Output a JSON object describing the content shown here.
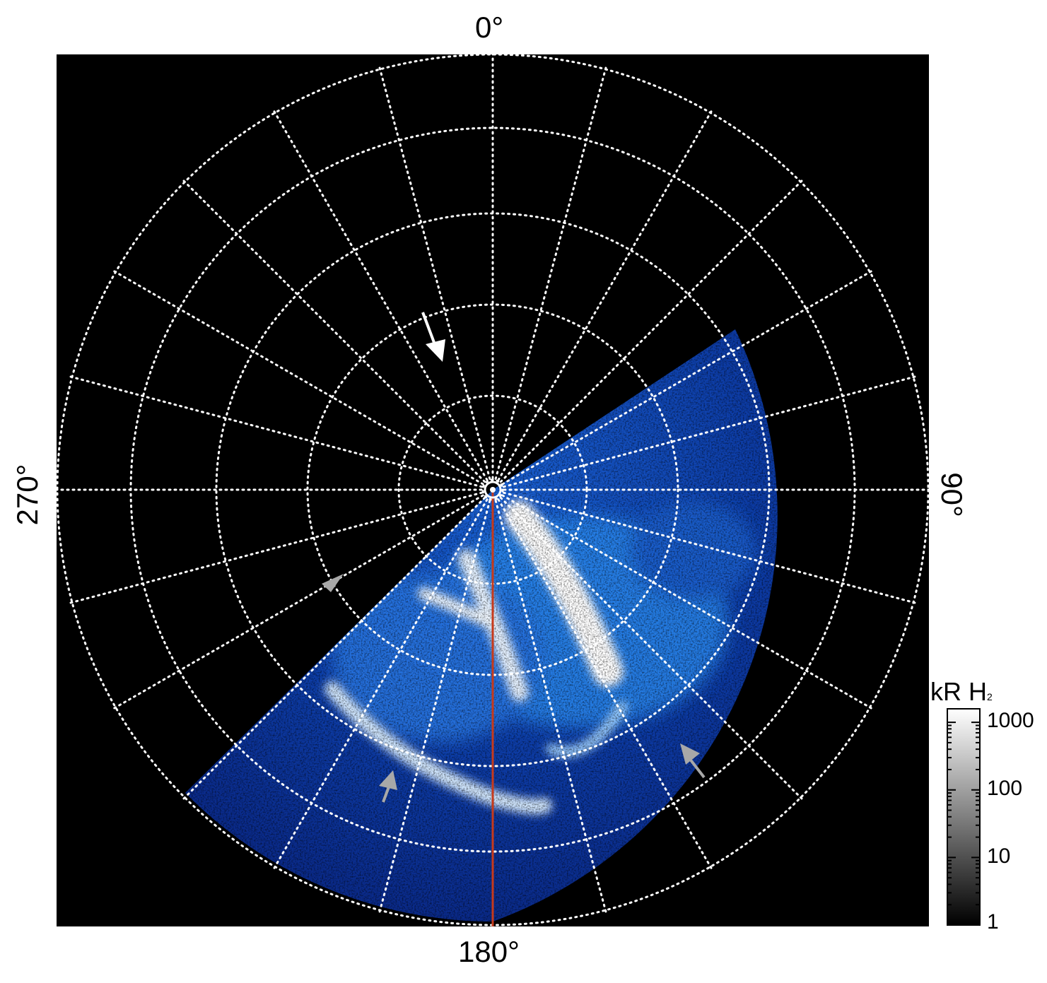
{
  "map": {
    "labels": {
      "top": "0°",
      "right": "90°",
      "bottom": "180°",
      "left": "270°"
    },
    "colorbar": {
      "title_main": "kR H",
      "title_sub": "2",
      "ticks": [
        "1000",
        "100",
        "10",
        "1"
      ]
    },
    "colors": {
      "background": "#000000",
      "grid": "#ffffff",
      "meridian_line": "#c63a1c",
      "aurora_dim": "#0a2a8a",
      "aurora_mid": "#1e7be0",
      "aurora_bright": "#ffffff",
      "arrow_white": "#ffffff",
      "arrow_gray": "#a8a8a8"
    }
  }
}
